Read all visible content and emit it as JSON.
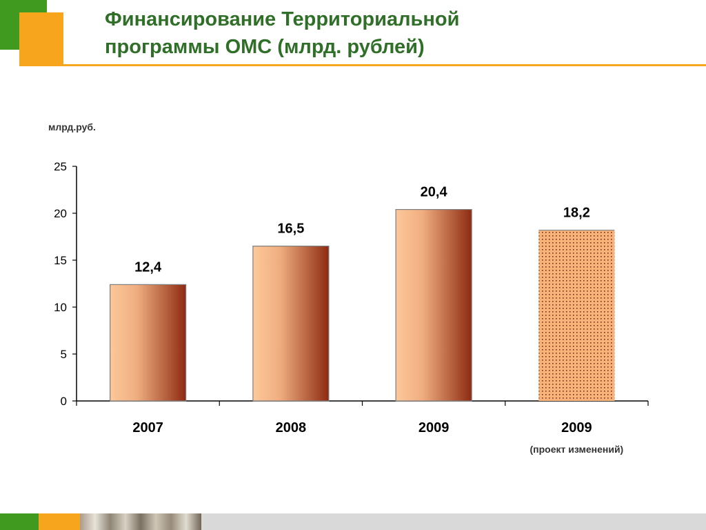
{
  "title": "Финансирование Территориальной\nпрограммы ОМС (млрд. рублей)",
  "colors": {
    "brand_green": "#3f9a1f",
    "brand_orange": "#f7a51d",
    "title_text": "#2f6f28",
    "bar_light": "#fcc89a",
    "bar_dark": "#8e2a12",
    "dotted_fill": "#f7b37a",
    "dotted_dots": "#7a2d10"
  },
  "chart_data": {
    "type": "bar",
    "title": "",
    "ylabel": "млрд.руб.",
    "xlabel": "",
    "ylim": [
      0,
      25
    ],
    "yticks": [
      "0",
      "5",
      "10",
      "15",
      "20",
      "25"
    ],
    "grid": false,
    "categories": [
      "2007",
      "2008",
      "2009",
      "2009"
    ],
    "category_notes": [
      "",
      "",
      "",
      "(проект изменений)"
    ],
    "values": [
      12.4,
      16.5,
      20.4,
      18.2
    ],
    "value_labels": [
      "12,4",
      "16,5",
      "20,4",
      "18,2"
    ],
    "bar_styles": [
      "gradient",
      "gradient",
      "gradient",
      "dotted"
    ]
  }
}
